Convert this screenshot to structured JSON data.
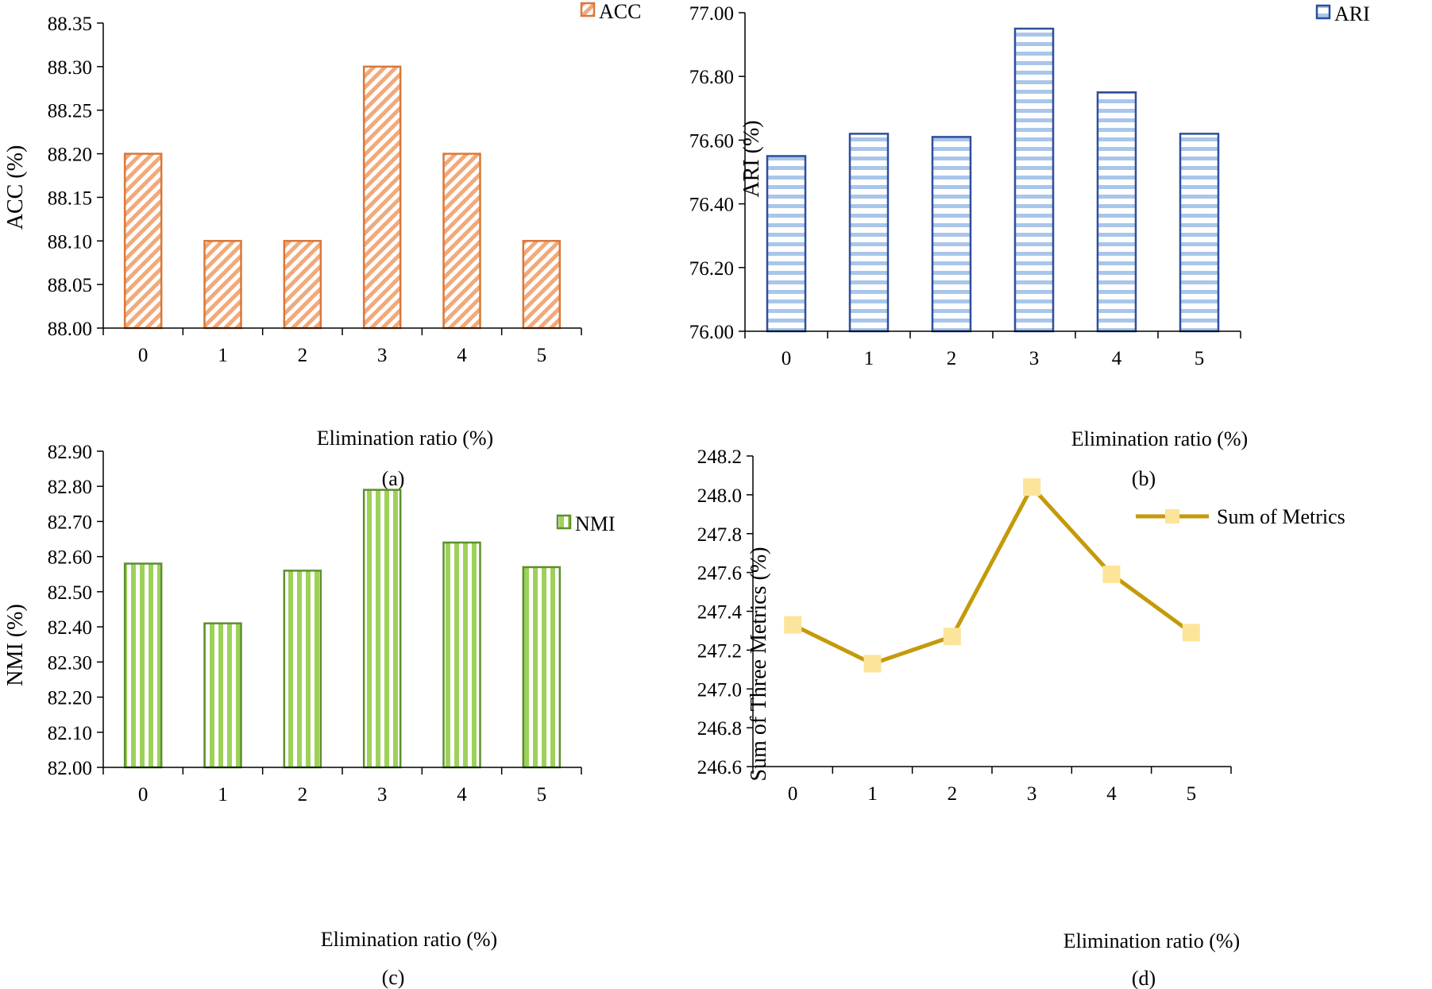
{
  "chart_data": [
    {
      "type": "bar",
      "panel_label": "(a)",
      "categories": [
        "0",
        "1",
        "2",
        "3",
        "4",
        "5"
      ],
      "values": [
        88.2,
        88.1,
        88.1,
        88.3,
        88.2,
        88.1
      ],
      "ylim": [
        88.0,
        88.35
      ],
      "yticks": [
        "88.00",
        "88.05",
        "88.10",
        "88.15",
        "88.20",
        "88.25",
        "88.30",
        "88.35"
      ],
      "xlabel": "Elimination ratio (%)",
      "ylabel": "ACC (%)",
      "legend": "ACC",
      "legend_position": "top-right",
      "color": "#D9783A",
      "pattern": "diagonal"
    },
    {
      "type": "bar",
      "panel_label": "(b)",
      "categories": [
        "0",
        "1",
        "2",
        "3",
        "4",
        "5"
      ],
      "values": [
        76.55,
        76.62,
        76.61,
        76.95,
        76.75,
        76.62
      ],
      "ylim": [
        76.0,
        77.0
      ],
      "yticks": [
        "76.00",
        "76.20",
        "76.40",
        "76.60",
        "76.80",
        "77.00"
      ],
      "xlabel": "Elimination ratio (%)",
      "ylabel": "ARI (%)",
      "legend": "ARI",
      "legend_position": "top-right",
      "color": "#2F4E9C",
      "fill_color": "#A9C6EA",
      "pattern": "horizontal"
    },
    {
      "type": "bar",
      "panel_label": "(c)",
      "categories": [
        "0",
        "1",
        "2",
        "3",
        "4",
        "5"
      ],
      "values": [
        82.58,
        82.41,
        82.56,
        82.79,
        82.64,
        82.57
      ],
      "ylim": [
        82.0,
        82.9
      ],
      "yticks": [
        "82.00",
        "82.10",
        "82.20",
        "82.30",
        "82.40",
        "82.50",
        "82.60",
        "82.70",
        "82.80",
        "82.90"
      ],
      "xlabel": "Elimination ratio (%)",
      "ylabel": "NMI (%)",
      "legend": "NMI",
      "legend_position": "top-right",
      "color": "#5E8F2E",
      "fill_color": "#9ED15A",
      "pattern": "vertical"
    },
    {
      "type": "line",
      "panel_label": "(d)",
      "x": [
        "0",
        "1",
        "2",
        "3",
        "4",
        "5"
      ],
      "values": [
        247.33,
        247.13,
        247.27,
        248.04,
        247.59,
        247.29
      ],
      "ylim": [
        246.6,
        248.2
      ],
      "yticks": [
        "246.6",
        "246.8",
        "247.0",
        "247.2",
        "247.4",
        "247.6",
        "247.8",
        "248.0",
        "248.2"
      ],
      "xlabel": "Elimination ratio (%)",
      "ylabel": "Sum of Three Metrics (%)",
      "legend": "Sum of Metrics",
      "legend_position": "top-right",
      "line_color": "#C49A0A",
      "marker_color": "#FCE49A"
    }
  ]
}
